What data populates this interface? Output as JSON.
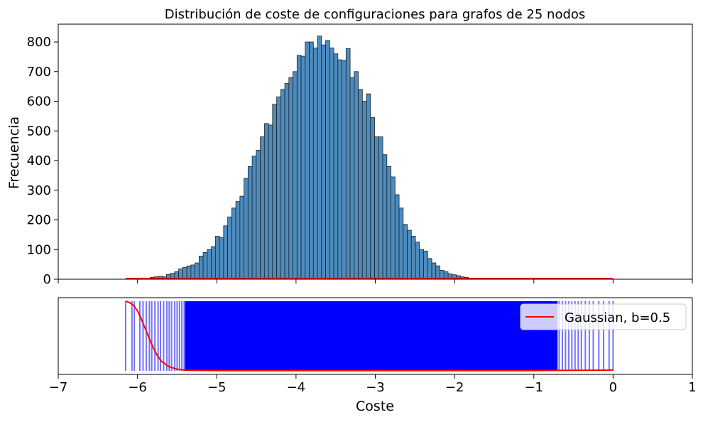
{
  "chart_data": [
    {
      "type": "bar",
      "title": "Distribución de coste de configuraciones para grafos de 25 nodos",
      "xlabel": "",
      "ylabel": "Frecuencia",
      "xlim": [
        -7,
        1
      ],
      "ylim": [
        0,
        860
      ],
      "yticks": [
        0,
        100,
        200,
        300,
        400,
        500,
        600,
        700,
        800
      ],
      "yticks_labels": [
        "0",
        "100",
        "200",
        "300",
        "400",
        "500",
        "600",
        "700",
        "800"
      ],
      "grid": false,
      "bar_color": "#4c8cbf",
      "curve_color": "#ff0000",
      "bins": {
        "start": -6.15,
        "width": 0.0515,
        "values": [
          1,
          1,
          1,
          1,
          1,
          2,
          6,
          8,
          10,
          8,
          16,
          20,
          25,
          35,
          40,
          45,
          48,
          55,
          78,
          90,
          100,
          110,
          145,
          140,
          180,
          210,
          240,
          262,
          280,
          340,
          380,
          415,
          435,
          480,
          525,
          520,
          590,
          615,
          640,
          660,
          680,
          700,
          755,
          752,
          800,
          800,
          780,
          820,
          790,
          805,
          780,
          760,
          740,
          738,
          778,
          680,
          700,
          640,
          600,
          625,
          545,
          480,
          480,
          420,
          380,
          345,
          285,
          240,
          185,
          165,
          145,
          125,
          100,
          95,
          70,
          55,
          45,
          30,
          25,
          18,
          15,
          12,
          8,
          6,
          3,
          2,
          1,
          1,
          1,
          1,
          1,
          1,
          1,
          1
        ]
      },
      "curve": {
        "x": [
          -6.15,
          -6.0,
          -5.6,
          -5.0,
          -4.0,
          -3.0,
          -2.0,
          -1.0,
          0.0
        ],
        "y": [
          2,
          2,
          2,
          2,
          2,
          2,
          2,
          2,
          2
        ]
      }
    },
    {
      "type": "line",
      "xlabel": "Coste",
      "ylabel": "",
      "xlim": [
        -7,
        1
      ],
      "xticks": [
        -7,
        -6,
        -5,
        -4,
        -3,
        -2,
        -1,
        0,
        1
      ],
      "xticks_labels": [
        "−7",
        "−6",
        "−5",
        "−4",
        "−3",
        "−2",
        "−1",
        "0",
        "1"
      ],
      "grid": false,
      "legend": {
        "placement": "top-right",
        "entries": [
          "Gaussian, b=0.5"
        ]
      },
      "rug_color": "#0000ff",
      "rug": {
        "sparse_left": [
          -6.15,
          -6.07,
          -6.04,
          -5.97,
          -5.93,
          -5.89,
          -5.85,
          -5.82,
          -5.78,
          -5.74,
          -5.71,
          -5.67,
          -5.63,
          -5.6,
          -5.57,
          -5.53,
          -5.5,
          -5.47,
          -5.44,
          -5.41
        ],
        "dense_range": [
          -5.4,
          -0.7
        ],
        "sparse_right": [
          -0.68,
          -0.64,
          -0.6,
          -0.56,
          -0.52,
          -0.48,
          -0.44,
          -0.4,
          -0.35,
          -0.3,
          -0.25,
          -0.18,
          -0.12,
          -0.05,
          0.0
        ]
      },
      "series": [
        {
          "name": "Gaussian, b=0.5",
          "color": "#ff0000",
          "x": [
            -6.15,
            -6.1,
            -6.05,
            -6.0,
            -5.95,
            -5.9,
            -5.85,
            -5.8,
            -5.75,
            -5.7,
            -5.6,
            -5.5,
            -5.4,
            -5.0,
            -4.0,
            -3.0,
            -2.0,
            -1.0,
            -0.5,
            -0.2,
            0.0
          ],
          "y": [
            1.0,
            0.98,
            0.94,
            0.86,
            0.74,
            0.6,
            0.46,
            0.33,
            0.22,
            0.14,
            0.06,
            0.025,
            0.01,
            0.005,
            0.005,
            0.005,
            0.005,
            0.005,
            0.008,
            0.01,
            0.012
          ]
        }
      ]
    }
  ]
}
